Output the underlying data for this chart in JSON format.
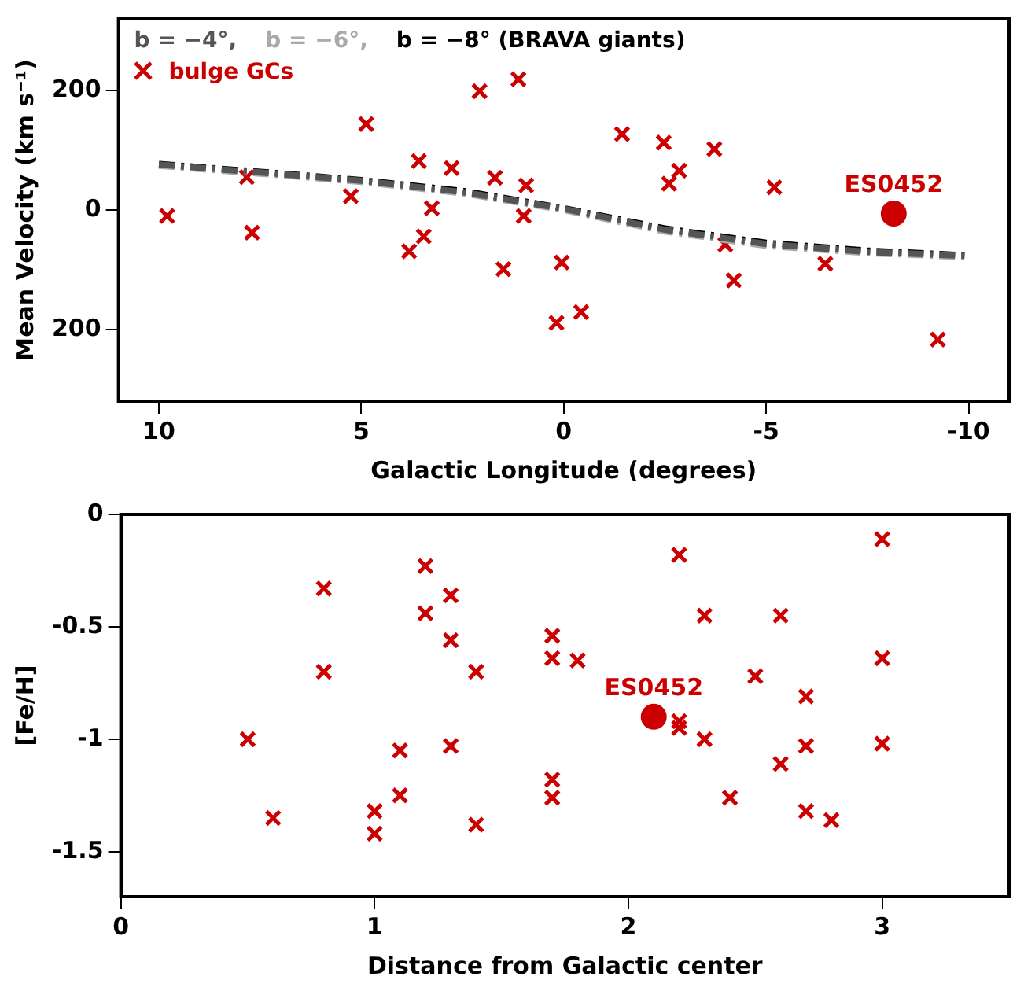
{
  "chart_data": [
    {
      "type": "scatter",
      "xlabel": "Galactic Longitude (degrees)",
      "ylabel": "Mean Velocity (km s⁻¹)",
      "xlim": [
        11,
        -11
      ],
      "xticks": [
        10,
        5,
        0,
        -5,
        -10
      ],
      "ylim": [
        -320,
        320
      ],
      "yticks": [
        {
          "value": -200,
          "label": "200"
        },
        0,
        200
      ],
      "grid": false,
      "legend": "top left",
      "marker": "cross",
      "annotations": [
        {
          "text": "ES0452",
          "x": -8.15,
          "y": -6
        }
      ],
      "series": [
        {
          "type": "line",
          "name": "b = −4°,",
          "color": "#555555",
          "marker": "none",
          "line_style": "dashed",
          "x": [
            10,
            7.5,
            5,
            2.5,
            0,
            -2.5,
            -5,
            -7.5,
            -10
          ],
          "values": [
            76,
            63,
            49,
            30,
            2,
            -33,
            -57,
            -70,
            -77
          ]
        },
        {
          "type": "line",
          "name": "b = −6°,",
          "color": "#aaaaaa",
          "marker": "none",
          "line_style": "dashed",
          "x": [
            10,
            7.5,
            5,
            2.5,
            0,
            -2.5,
            -5,
            -7.5,
            -10
          ],
          "values": [
            74,
            61,
            47,
            28,
            0,
            -36,
            -60,
            -72,
            -79
          ]
        },
        {
          "type": "line",
          "name": "b = −8° (BRAVA giants)",
          "color": "#000000",
          "marker": "none",
          "line_style": "dashed",
          "x": [
            10,
            7.5,
            5,
            2.5,
            0,
            -2.5,
            -5,
            -7.5,
            -10
          ],
          "values": [
            77,
            64,
            50,
            32,
            3,
            -31,
            -55,
            -68,
            -76
          ]
        },
        {
          "name": "bulge GCs",
          "color": "#cc0000",
          "x": [
            9.8,
            7.83,
            7.7,
            5.26,
            4.88,
            3.58,
            3.82,
            3.46,
            3.26,
            2.77,
            2.08,
            1.7,
            1.49,
            1.12,
            0.93,
            0.99,
            0.05,
            0.18,
            -0.43,
            -1.44,
            -2.47,
            -2.6,
            -2.85,
            -3.72,
            -3.99,
            -4.2,
            -5.2,
            -6.46,
            -9.24
          ],
          "values": [
            -10,
            55,
            -38,
            23,
            144,
            82,
            -69,
            -44,
            3,
            70,
            199,
            54,
            -99,
            219,
            41,
            -10,
            -88,
            -189,
            -171,
            127,
            113,
            44,
            66,
            102,
            -58,
            -118,
            38,
            -90,
            -217
          ]
        },
        {
          "color": "#cc0000",
          "marker": "circle",
          "x": [
            -8.15
          ],
          "values": [
            -6
          ]
        }
      ]
    },
    {
      "type": "scatter",
      "xlabel": "Distance from Galactic center",
      "ylabel": "[Fe/H]",
      "xlim": [
        0,
        3.5
      ],
      "xticks": [
        0,
        1,
        2,
        3
      ],
      "ylim": [
        -1.7,
        0
      ],
      "yticks": [
        -1.5,
        -1,
        -0.5,
        0
      ],
      "grid": false,
      "marker": "cross",
      "annotations": [
        {
          "text": "ES0452",
          "x": 2.1,
          "y": -0.9
        }
      ],
      "series": [
        {
          "color": "#cc0000",
          "x": [
            0.5,
            0.6,
            0.8,
            0.8,
            1.0,
            1.0,
            1.1,
            1.1,
            1.2,
            1.2,
            1.3,
            1.3,
            1.3,
            1.4,
            1.4,
            1.7,
            1.7,
            1.7,
            1.7,
            1.8,
            2.2,
            2.2,
            2.2,
            2.3,
            2.3,
            2.4,
            2.5,
            2.6,
            2.6,
            2.7,
            2.7,
            2.7,
            2.8,
            3.0,
            3.0,
            3.0
          ],
          "values": [
            -1.0,
            -1.35,
            -0.33,
            -0.7,
            -1.32,
            -1.42,
            -1.05,
            -1.25,
            -0.23,
            -0.44,
            -0.36,
            -0.56,
            -1.03,
            -0.7,
            -1.38,
            -0.54,
            -0.64,
            -1.18,
            -1.26,
            -0.65,
            -0.18,
            -0.92,
            -0.95,
            -0.45,
            -1.0,
            -1.26,
            -0.72,
            -0.45,
            -1.11,
            -0.81,
            -1.03,
            -1.32,
            -1.36,
            -0.11,
            -0.64,
            -1.02
          ]
        },
        {
          "color": "#cc0000",
          "marker": "circle",
          "x": [
            2.1
          ],
          "values": [
            -0.9
          ]
        }
      ]
    }
  ]
}
